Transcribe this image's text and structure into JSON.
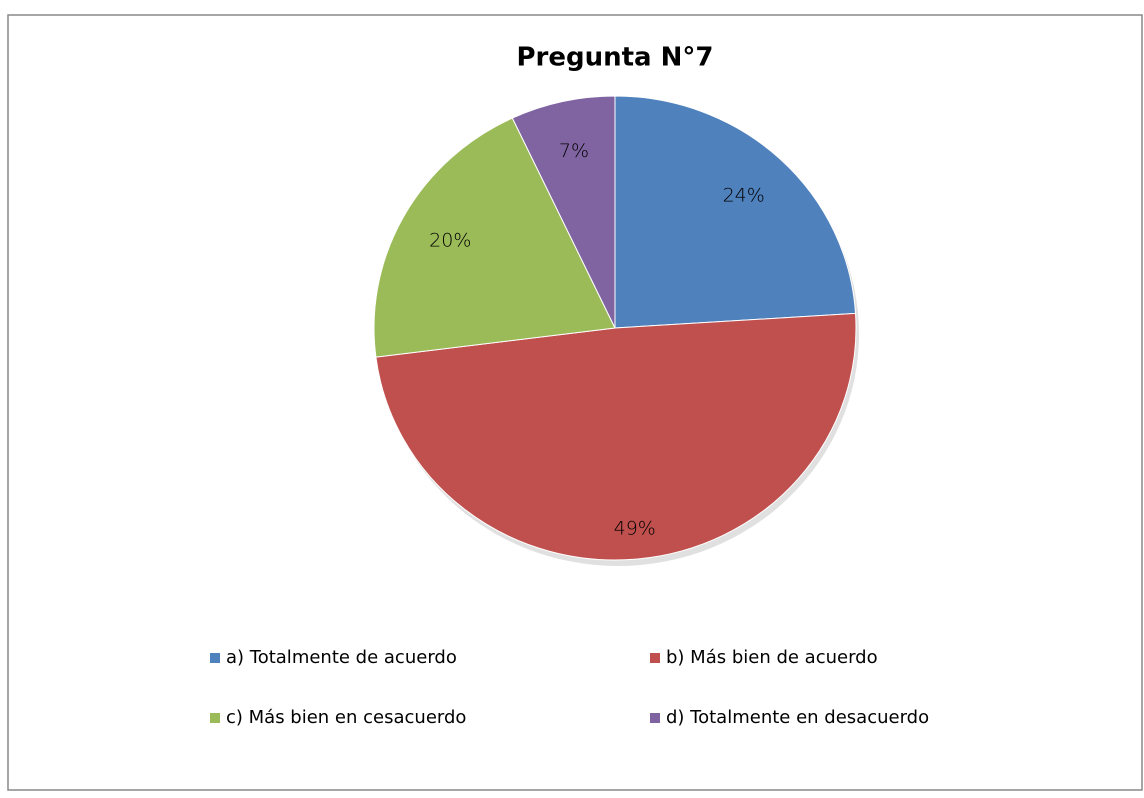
{
  "chart_data": {
    "type": "pie",
    "title": "Pregunta N°7",
    "categories": [
      "a) Totalmente de acuerdo",
      "b) Más bien de acuerdo",
      "c) Más bien en cesacuerdo",
      "d) Totalmente en desacuerdo"
    ],
    "values": [
      24,
      49,
      20,
      7
    ],
    "value_labels": [
      "24%",
      "49%",
      "20%",
      "7%"
    ],
    "colors": [
      "#4f81bd",
      "#c0504d",
      "#9bbb59",
      "#8064a2"
    ],
    "legend": "bottom"
  }
}
